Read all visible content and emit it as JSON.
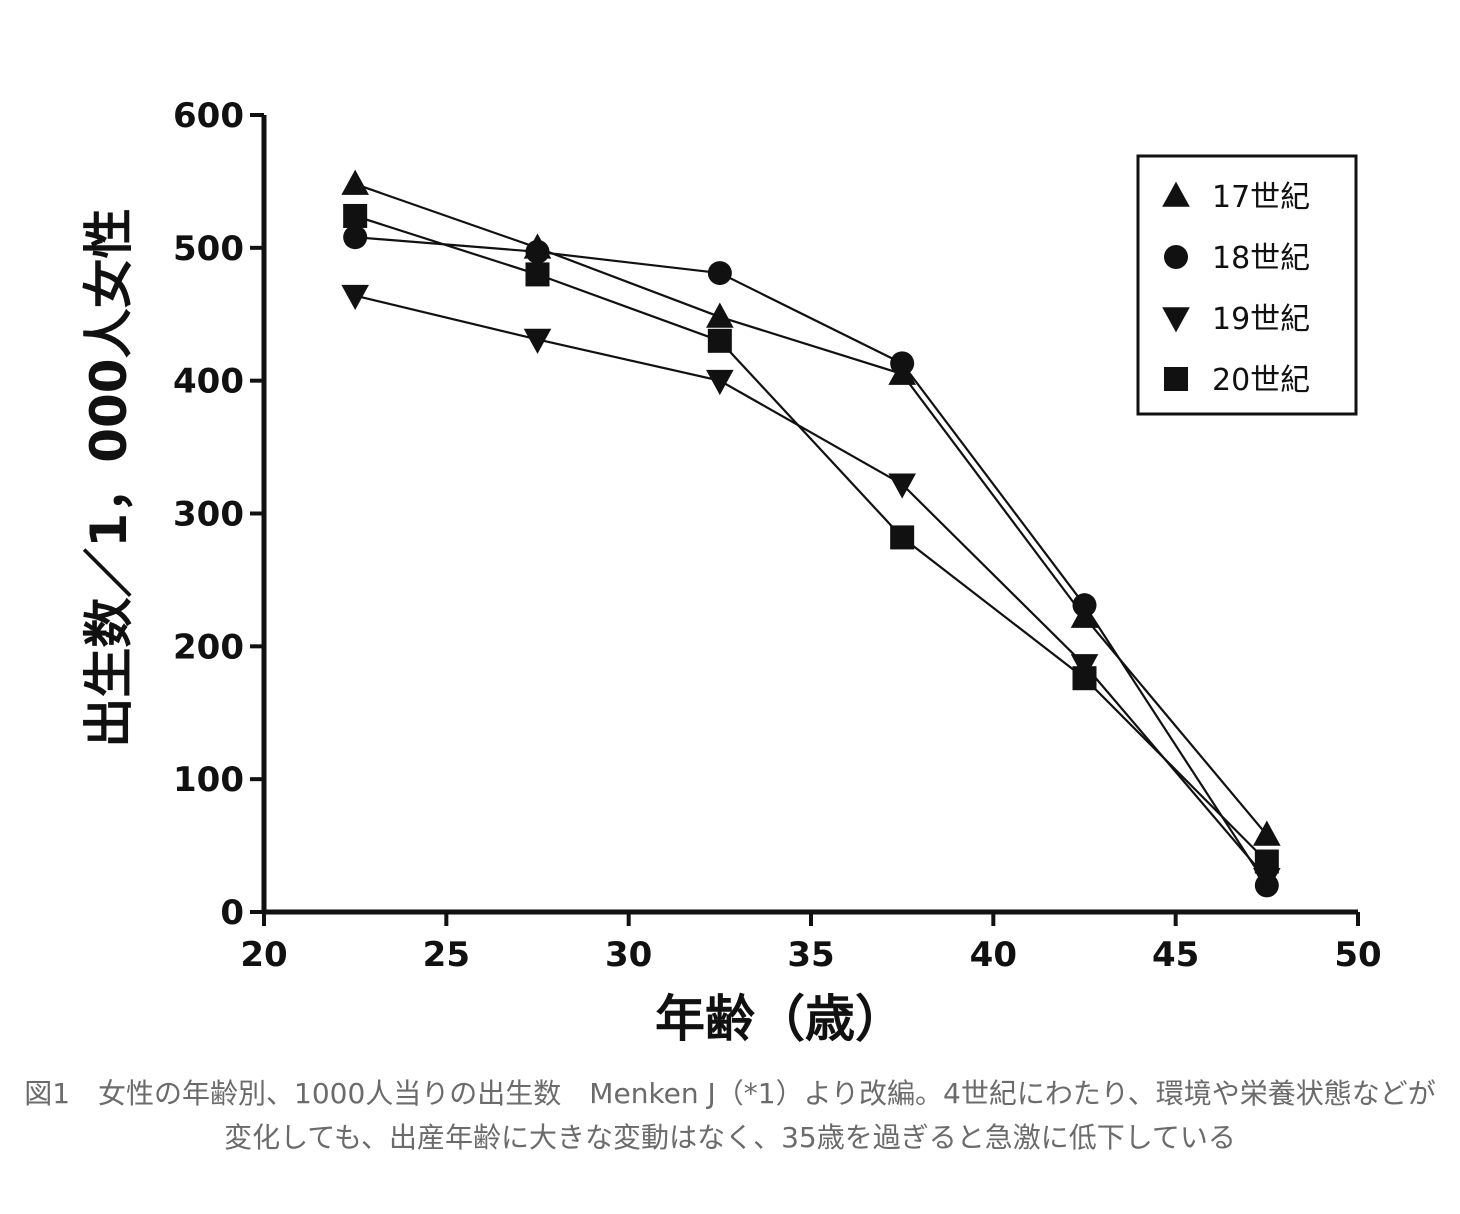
{
  "chart_data": {
    "type": "line",
    "xlabel": "年齢（歳）",
    "ylabel": "出生数／1，000人女性",
    "xlim": [
      20,
      50
    ],
    "ylim": [
      0,
      600
    ],
    "xticks": [
      20,
      25,
      30,
      35,
      40,
      45,
      50
    ],
    "yticks": [
      0,
      100,
      200,
      300,
      400,
      500,
      600
    ],
    "grid": false,
    "legend_position": "top-right",
    "series": [
      {
        "name": "17世紀",
        "marker": "triangle-up",
        "x": [
          22.5,
          27.5,
          32.5,
          37.5,
          42.5,
          47.5
        ],
        "y": [
          548,
          500,
          448,
          405,
          222,
          58
        ]
      },
      {
        "name": "18世紀",
        "marker": "circle",
        "x": [
          22.5,
          27.5,
          32.5,
          37.5,
          42.5,
          47.5
        ],
        "y": [
          508,
          497,
          481,
          413,
          231,
          20
        ]
      },
      {
        "name": "19世紀",
        "marker": "triangle-down",
        "x": [
          22.5,
          27.5,
          32.5,
          37.5,
          42.5,
          47.5
        ],
        "y": [
          464,
          431,
          400,
          322,
          186,
          25
        ]
      },
      {
        "name": "20世紀",
        "marker": "square",
        "x": [
          22.5,
          27.5,
          32.5,
          37.5,
          42.5,
          47.5
        ],
        "y": [
          524,
          480,
          430,
          282,
          176,
          38
        ]
      }
    ]
  },
  "caption": "図1　女性の年齢別、1000人当りの出生数　Menken J（*1）より改編。4世紀にわたり、環境や栄養状態などが変化しても、出産年齢に大きな変動はなく、35歳を過ぎると急激に低下している"
}
